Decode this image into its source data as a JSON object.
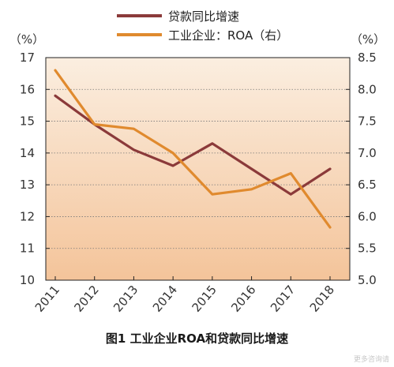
{
  "chart_data": {
    "type": "line",
    "categories": [
      "2011",
      "2012",
      "2013",
      "2014",
      "2015",
      "2016",
      "2017",
      "2018"
    ],
    "y_left": {
      "unit_label": "（%）",
      "range": [
        10,
        17
      ],
      "ticks": [
        "10",
        "11",
        "12",
        "13",
        "14",
        "15",
        "16",
        "17"
      ]
    },
    "y_right": {
      "unit_label": "（%）",
      "range": [
        5.0,
        8.5
      ],
      "ticks": [
        "5.0",
        "5.5",
        "6.0",
        "6.5",
        "7.0",
        "7.5",
        "8.0",
        "8.5"
      ]
    },
    "series": [
      {
        "name": "贷款同比增速",
        "axis": "left",
        "color": "#8b3a3a",
        "values": [
          15.8,
          14.9,
          14.1,
          13.6,
          14.3,
          13.5,
          12.7,
          13.5
        ]
      },
      {
        "name": "工业企业：ROA（右）",
        "axis": "right",
        "color": "#e08a2e",
        "values": [
          8.3,
          7.45,
          7.38,
          7.0,
          6.35,
          6.43,
          6.68,
          5.83
        ]
      }
    ],
    "grid": true,
    "legend_position": "top-center",
    "background": "gradient-peach"
  },
  "caption": "图1  工业企业ROA和贷款同比增速",
  "watermark": "更多咨询请"
}
